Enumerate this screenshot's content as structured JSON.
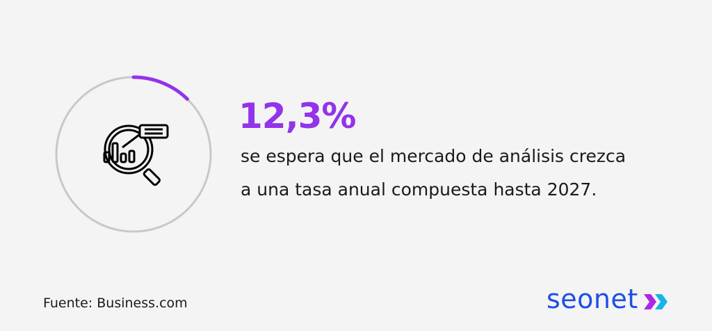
{
  "stat": {
    "value": "12,3%",
    "progress_percent": 12.3,
    "description_line1": "se espera que el mercado de análisis crezca",
    "description_line2": "a una tasa anual compuesta hasta 2027."
  },
  "icon": "magnifier-chart-icon",
  "source": "Fuente: Business.com",
  "logo": {
    "text": "seonet"
  },
  "colors": {
    "accent": "#9333ea",
    "ring": "#c8c8c8",
    "logo_blue": "#1d4ee8",
    "background": "#f4f4f4"
  }
}
